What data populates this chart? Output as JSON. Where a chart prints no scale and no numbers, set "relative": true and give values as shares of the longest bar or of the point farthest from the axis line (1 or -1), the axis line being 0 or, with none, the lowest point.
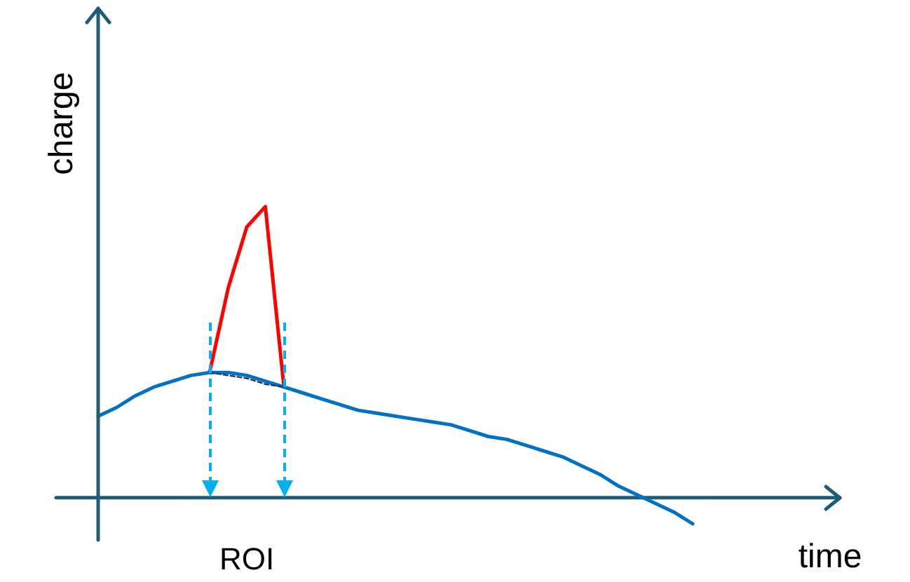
{
  "chart_data": {
    "type": "line",
    "relative": true,
    "xlabel": "time",
    "ylabel": "charge",
    "categories": [
      null,
      null,
      null,
      null,
      null,
      null,
      null,
      null,
      null,
      null,
      null,
      null,
      null,
      null,
      null,
      null,
      null,
      null,
      null,
      null,
      null,
      null,
      null,
      null,
      null,
      null,
      null,
      null,
      null,
      null,
      null,
      null,
      null
    ],
    "series": [
      {
        "color": "#0070c0",
        "values": [
          0.28,
          0.31,
          0.35,
          0.38,
          0.4,
          0.42,
          0.43,
          0.43,
          0.42,
          0.4,
          0.38,
          0.36,
          0.34,
          0.32,
          0.3,
          0.29,
          0.28,
          0.27,
          0.26,
          0.25,
          0.23,
          0.21,
          0.2,
          0.18,
          0.16,
          0.14,
          0.11,
          0.08,
          0.04,
          0.01,
          -0.02,
          -0.05,
          -0.09
        ]
      },
      {
        "color": "#ff0000",
        "values": [
          null,
          null,
          null,
          null,
          null,
          null,
          0.43,
          0.72,
          0.93,
          1.0,
          0.38,
          null,
          null,
          null,
          null,
          null,
          null,
          null,
          null,
          null,
          null,
          null,
          null,
          null,
          null,
          null,
          null,
          null,
          null,
          null,
          null,
          null,
          null
        ]
      },
      {
        "color": "#1f3864",
        "line_style": "dashed",
        "values": [
          null,
          null,
          null,
          null,
          null,
          null,
          0.43,
          0.42,
          0.41,
          0.39,
          0.38,
          null,
          null,
          null,
          null,
          null,
          null,
          null,
          null,
          null,
          null,
          null,
          null,
          null,
          null,
          null,
          null,
          null,
          null,
          null,
          null,
          null,
          null
        ]
      }
    ],
    "ref_lines": [
      {
        "axis": "y",
        "value": 0,
        "color": "#1f5c7a"
      }
    ],
    "annotations": [
      "ROI"
    ]
  }
}
